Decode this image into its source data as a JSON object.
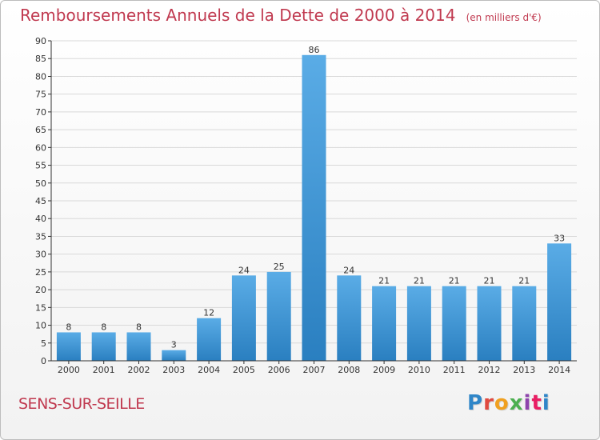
{
  "header": {
    "title": "Remboursements Annuels de la Dette de 2000 à 2014",
    "unit": "(en milliers d'€)"
  },
  "footer": {
    "commune": "SENS-SUR-SEILLE",
    "logo_text": "Proxiti",
    "logo_colors": [
      "#2f86c8",
      "#e04a3f",
      "#f0a020",
      "#4caf50",
      "#8e44ad",
      "#e91e63",
      "#2f86c8"
    ]
  },
  "colors": {
    "title": "#c0394f",
    "bar_light": "#5aace6",
    "bar_dark": "#2a7fc0",
    "grid": "#d9d9d9",
    "axis": "#333333"
  },
  "chart_data": {
    "type": "bar",
    "categories": [
      "2000",
      "2001",
      "2002",
      "2003",
      "2004",
      "2005",
      "2006",
      "2007",
      "2008",
      "2009",
      "2010",
      "2011",
      "2012",
      "2013",
      "2014"
    ],
    "values": [
      8,
      8,
      8,
      3,
      12,
      24,
      25,
      86,
      24,
      21,
      21,
      21,
      21,
      21,
      33
    ],
    "title": "Remboursements Annuels de la Dette de 2000 à 2014",
    "ylim": [
      0,
      90
    ],
    "yticks": [
      0,
      5,
      10,
      15,
      20,
      25,
      30,
      35,
      40,
      45,
      50,
      55,
      60,
      65,
      70,
      75,
      80,
      85,
      90
    ],
    "grid": true,
    "data_labels": true
  }
}
